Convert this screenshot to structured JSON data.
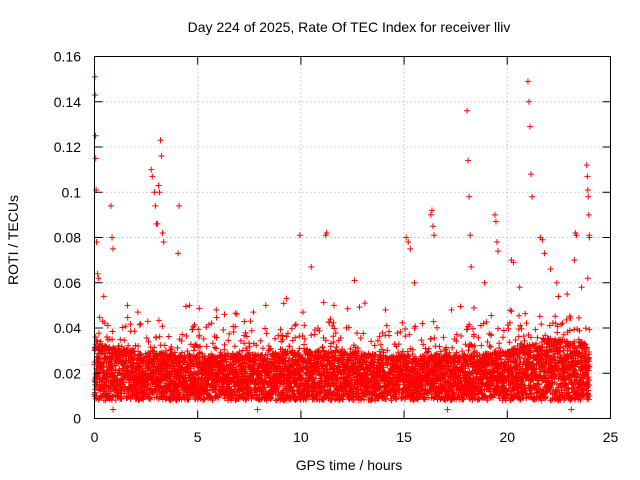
{
  "chart_data": {
    "type": "scatter",
    "title": "Day 224 of 2025, Rate Of TEC Index for receiver lliv",
    "xlabel": "GPS time / hours",
    "ylabel": "ROTI / TECUs",
    "xlim": [
      0,
      25
    ],
    "ylim": [
      0,
      0.16
    ],
    "xticks": [
      "0",
      "5",
      "10",
      "15",
      "20",
      "25"
    ],
    "xtick_values": [
      0,
      5,
      10,
      15,
      20,
      25
    ],
    "yticks": [
      "0",
      "0.02",
      "0.04",
      "0.06",
      "0.08",
      "0.1",
      "0.12",
      "0.14",
      "0.16"
    ],
    "ytick_values": [
      0,
      0.02,
      0.04,
      0.06,
      0.08,
      0.1,
      0.12,
      0.14,
      0.16
    ],
    "grid": true,
    "marker": "plus",
    "color": "#ff0000",
    "series": [
      {
        "name": "ROTI",
        "baseline_envelope_hours": [
          0,
          2,
          4,
          6,
          8,
          10,
          12,
          14,
          16,
          18,
          20,
          22,
          24
        ],
        "baseline_envelope_roti": [
          0.025,
          0.022,
          0.02,
          0.02,
          0.021,
          0.022,
          0.022,
          0.02,
          0.02,
          0.02,
          0.022,
          0.028,
          0.025
        ],
        "points": [
          [
            0.02,
            0.151
          ],
          [
            0.03,
            0.143
          ],
          [
            0.05,
            0.125
          ],
          [
            0.06,
            0.115
          ],
          [
            0.08,
            0.101
          ],
          [
            0.1,
            0.078
          ],
          [
            0.15,
            0.064
          ],
          [
            0.2,
            0.062
          ],
          [
            0.8,
            0.094
          ],
          [
            0.85,
            0.08
          ],
          [
            0.9,
            0.075
          ],
          [
            2.75,
            0.11
          ],
          [
            2.8,
            0.107
          ],
          [
            2.9,
            0.1
          ],
          [
            2.95,
            0.094
          ],
          [
            3.0,
            0.086
          ],
          [
            3.05,
            0.086
          ],
          [
            3.1,
            0.103
          ],
          [
            3.15,
            0.1
          ],
          [
            3.2,
            0.123
          ],
          [
            3.25,
            0.116
          ],
          [
            3.3,
            0.082
          ],
          [
            3.35,
            0.078
          ],
          [
            4.1,
            0.094
          ],
          [
            4.05,
            0.073
          ],
          [
            9.95,
            0.081
          ],
          [
            10.5,
            0.067
          ],
          [
            11.25,
            0.082
          ],
          [
            11.2,
            0.081
          ],
          [
            12.6,
            0.061
          ],
          [
            15.1,
            0.08
          ],
          [
            15.2,
            0.078
          ],
          [
            15.3,
            0.075
          ],
          [
            16.35,
            0.092
          ],
          [
            16.3,
            0.09
          ],
          [
            16.4,
            0.085
          ],
          [
            16.45,
            0.081
          ],
          [
            18.05,
            0.136
          ],
          [
            18.1,
            0.114
          ],
          [
            18.15,
            0.098
          ],
          [
            18.2,
            0.081
          ],
          [
            18.25,
            0.067
          ],
          [
            19.4,
            0.09
          ],
          [
            19.45,
            0.087
          ],
          [
            19.5,
            0.078
          ],
          [
            19.55,
            0.074
          ],
          [
            20.2,
            0.07
          ],
          [
            20.3,
            0.069
          ],
          [
            21.0,
            0.149
          ],
          [
            21.05,
            0.14
          ],
          [
            21.1,
            0.129
          ],
          [
            21.15,
            0.108
          ],
          [
            21.2,
            0.098
          ],
          [
            21.6,
            0.08
          ],
          [
            21.7,
            0.079
          ],
          [
            21.8,
            0.073
          ],
          [
            22.1,
            0.066
          ],
          [
            23.3,
            0.082
          ],
          [
            23.35,
            0.081
          ],
          [
            23.25,
            0.07
          ],
          [
            23.85,
            0.112
          ],
          [
            23.88,
            0.107
          ],
          [
            23.9,
            0.101
          ],
          [
            23.92,
            0.098
          ],
          [
            23.95,
            0.09
          ],
          [
            23.97,
            0.081
          ],
          [
            23.98,
            0.08
          ],
          [
            23.9,
            0.062
          ],
          [
            0.45,
            0.054
          ],
          [
            1.6,
            0.05
          ],
          [
            2.1,
            0.047
          ],
          [
            4.6,
            0.05
          ],
          [
            5.9,
            0.048
          ],
          [
            6.3,
            0.046
          ],
          [
            7.7,
            0.047
          ],
          [
            8.3,
            0.05
          ],
          [
            9.3,
            0.053
          ],
          [
            10.1,
            0.047
          ],
          [
            11.6,
            0.05
          ],
          [
            13.1,
            0.051
          ],
          [
            14.1,
            0.048
          ],
          [
            15.5,
            0.06
          ],
          [
            17.3,
            0.048
          ],
          [
            18.9,
            0.06
          ],
          [
            20.6,
            0.058
          ],
          [
            22.4,
            0.06
          ],
          [
            22.9,
            0.055
          ],
          [
            23.6,
            0.058
          ],
          [
            7.9,
            0.004
          ],
          [
            17.1,
            0.004
          ],
          [
            0.9,
            0.004
          ],
          [
            23.1,
            0.004
          ]
        ]
      }
    ]
  }
}
